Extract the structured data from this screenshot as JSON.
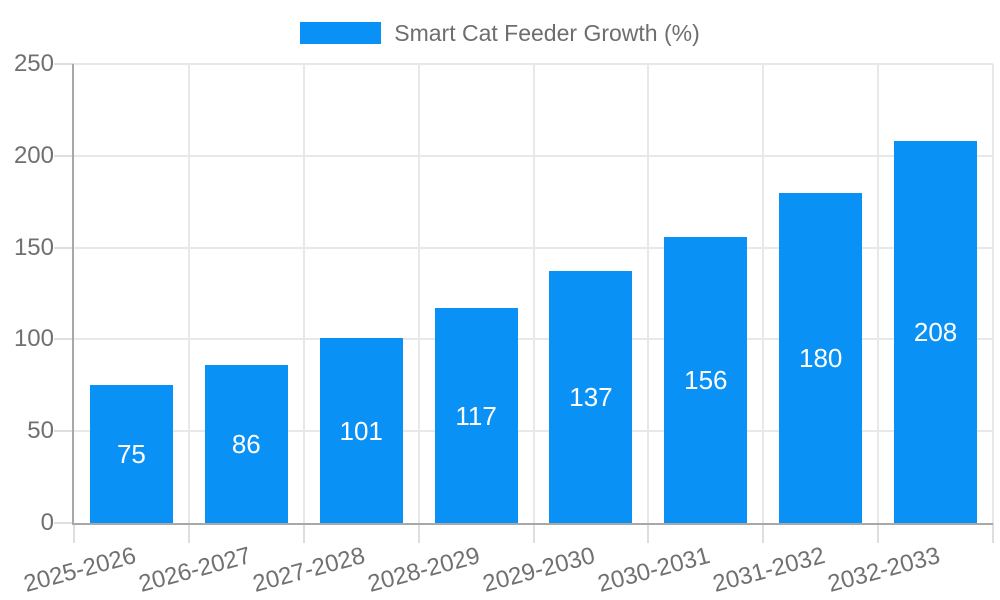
{
  "chart_data": {
    "type": "bar",
    "title": "Smart Cat Feeder Growth (%)",
    "legend": {
      "position": "top-center",
      "entries": [
        "Smart Cat Feeder Growth (%)"
      ]
    },
    "categories": [
      "2025-2026",
      "2026-2027",
      "2027-2028",
      "2028-2029",
      "2029-2030",
      "2030-2031",
      "2031-2032",
      "2032-2033"
    ],
    "series": [
      {
        "name": "Smart Cat Feeder Growth (%)",
        "values": [
          75,
          86,
          101,
          117,
          137,
          156,
          180,
          208
        ]
      }
    ],
    "value_labels_shown": true,
    "xlabel": "",
    "ylabel": "",
    "ylim": [
      0,
      250
    ],
    "yticks": [
      0,
      50,
      100,
      150,
      200,
      250
    ],
    "grid": true,
    "colors": {
      "bar": "#0991f5",
      "value_label": "#ffffff",
      "axis_text": "#707070",
      "legend_text": "#6e6e6e",
      "grid_line": "#e8e8e8",
      "axis_line": "#a8a8a8",
      "tick_line": "#dedede",
      "background": "#ffffff"
    }
  }
}
